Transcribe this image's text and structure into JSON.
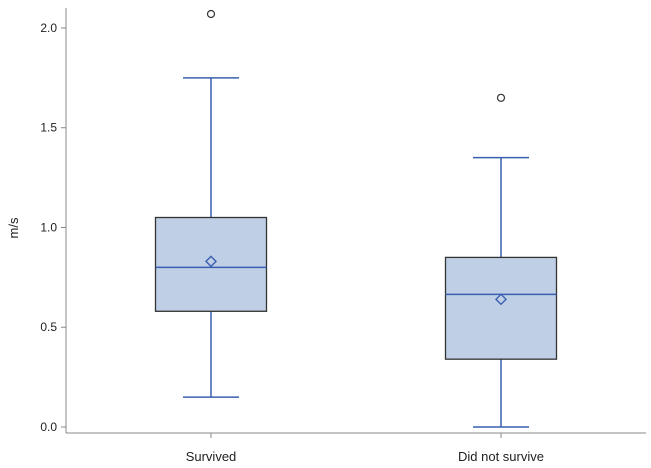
{
  "chart_data": {
    "type": "boxplot",
    "title": "",
    "xlabel": "",
    "ylabel": "m/s",
    "ylim": [
      -0.03,
      2.1
    ],
    "yticks": [
      0.0,
      0.5,
      1.0,
      1.5,
      2.0
    ],
    "ytick_labels": [
      "0.0",
      "0.5",
      "1.0",
      "1.5",
      "2.0"
    ],
    "grid": false,
    "legend": "none",
    "categories": [
      "Survived",
      "Did not survive"
    ],
    "boxes": [
      {
        "category": "Survived",
        "whisker_low": 0.15,
        "q1": 0.58,
        "median": 0.8,
        "q3": 1.05,
        "whisker_high": 1.75,
        "mean": 0.83,
        "outliers": [
          2.07
        ]
      },
      {
        "category": "Did not survive",
        "whisker_low": 0.0,
        "q1": 0.34,
        "median": 0.665,
        "q3": 0.85,
        "whisker_high": 1.35,
        "mean": 0.64,
        "outliers": [
          1.65
        ]
      }
    ],
    "colors": {
      "box_fill": "#bfcfe6",
      "box_edge": "#333333",
      "whisker": "#3a5fb0",
      "median": "#3a5fb0",
      "mean_marker": "#3a5fb0",
      "outlier": "#333333",
      "axis": "#888888"
    }
  }
}
